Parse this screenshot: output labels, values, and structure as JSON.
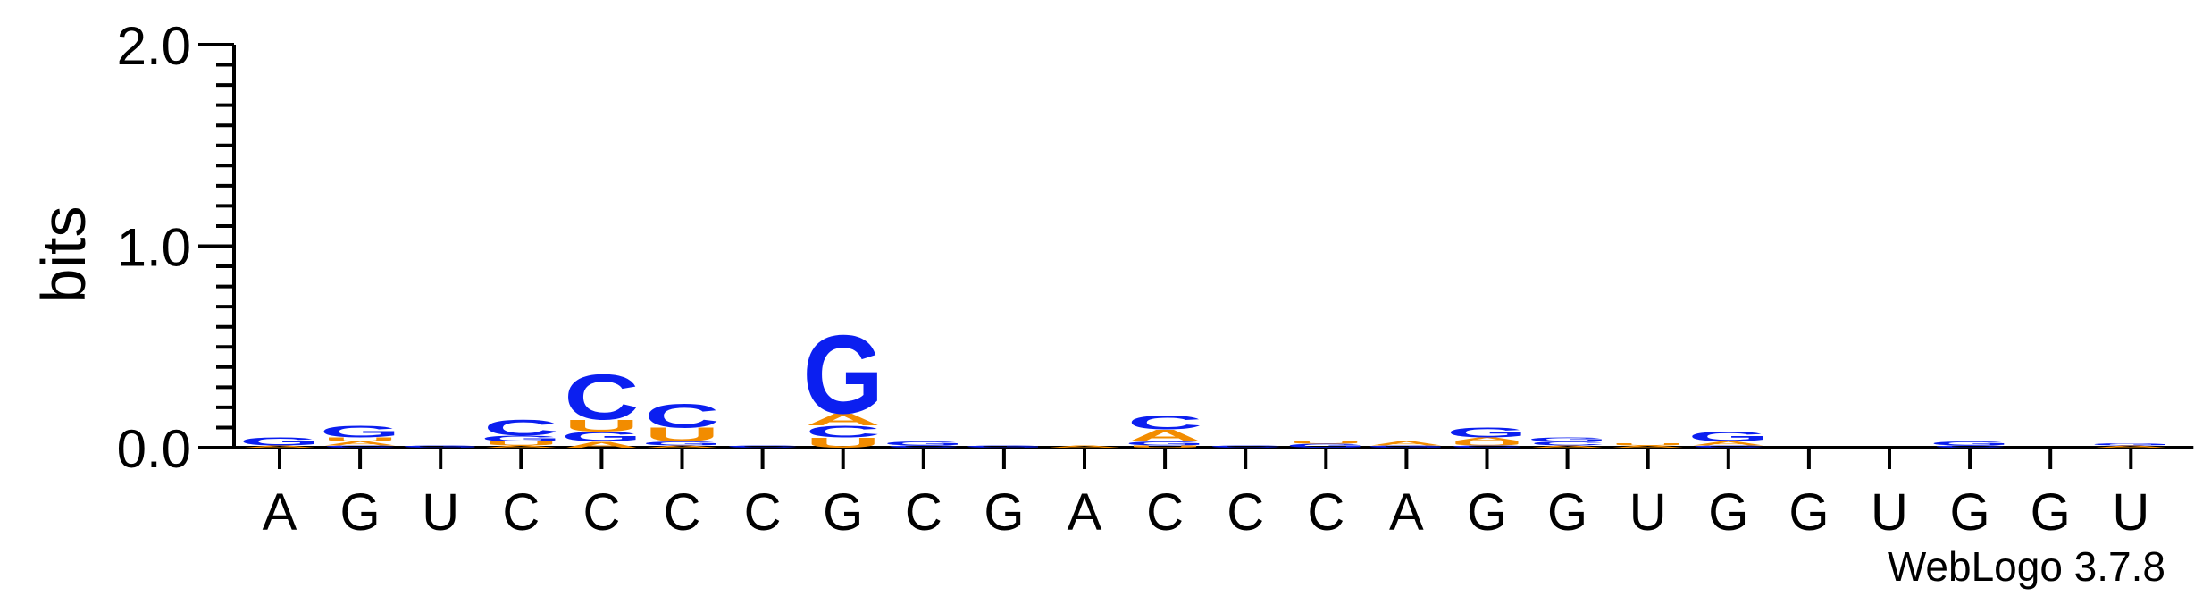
{
  "chart_data": {
    "type": "sequence-logo",
    "ylabel": "bits",
    "ylim": [
      0,
      2.0
    ],
    "yticks": [
      {
        "value": 0.0,
        "label": "0.0"
      },
      {
        "value": 1.0,
        "label": "1.0"
      },
      {
        "value": 2.0,
        "label": "2.0"
      }
    ],
    "colors": {
      "A": "#f28c00",
      "U": "#f28c00",
      "G": "#0b1ff0",
      "C": "#0b1ff0"
    },
    "positions": [
      {
        "label": "A",
        "stack": [
          [
            "A",
            0.01
          ],
          [
            "G",
            0.04
          ]
        ]
      },
      {
        "label": "G",
        "stack": [
          [
            "C",
            0.01
          ],
          [
            "A",
            0.02
          ],
          [
            "U",
            0.02
          ],
          [
            "G",
            0.06
          ]
        ]
      },
      {
        "label": "U",
        "stack": [
          [
            "G",
            0.01
          ]
        ]
      },
      {
        "label": "C",
        "stack": [
          [
            "A",
            0.01
          ],
          [
            "U",
            0.02
          ],
          [
            "G",
            0.03
          ],
          [
            "C",
            0.08
          ]
        ]
      },
      {
        "label": "C",
        "stack": [
          [
            "A",
            0.03
          ],
          [
            "G",
            0.05
          ],
          [
            "U",
            0.06
          ],
          [
            "C",
            0.23
          ]
        ]
      },
      {
        "label": "C",
        "stack": [
          [
            "A",
            0.01
          ],
          [
            "G",
            0.02
          ],
          [
            "U",
            0.07
          ],
          [
            "C",
            0.12
          ]
        ]
      },
      {
        "label": "C",
        "stack": [
          [
            "C",
            0.01
          ]
        ]
      },
      {
        "label": "G",
        "stack": [
          [
            "U",
            0.05
          ],
          [
            "C",
            0.06
          ],
          [
            "A",
            0.06
          ],
          [
            "G",
            0.4
          ]
        ]
      },
      {
        "label": "C",
        "stack": [
          [
            "C",
            0.01
          ],
          [
            "G",
            0.02
          ]
        ]
      },
      {
        "label": "G",
        "stack": [
          [
            "G",
            0.01
          ]
        ]
      },
      {
        "label": "A",
        "stack": [
          [
            "A",
            0.01
          ]
        ]
      },
      {
        "label": "C",
        "stack": [
          [
            "U",
            0.01
          ],
          [
            "G",
            0.02
          ],
          [
            "A",
            0.06
          ],
          [
            "C",
            0.07
          ]
        ]
      },
      {
        "label": "C",
        "stack": [
          [
            "C",
            0.01
          ]
        ]
      },
      {
        "label": "C",
        "stack": [
          [
            "G",
            0.02
          ],
          [
            "U",
            0.01
          ]
        ]
      },
      {
        "label": "A",
        "stack": [
          [
            "G",
            0.01
          ],
          [
            "A",
            0.02
          ]
        ]
      },
      {
        "label": "G",
        "stack": [
          [
            "C",
            0.01
          ],
          [
            "U",
            0.02
          ],
          [
            "A",
            0.02
          ],
          [
            "G",
            0.05
          ]
        ]
      },
      {
        "label": "G",
        "stack": [
          [
            "A",
            0.01
          ],
          [
            "C",
            0.02
          ],
          [
            "G",
            0.02
          ]
        ]
      },
      {
        "label": "U",
        "stack": [
          [
            "A",
            0.01
          ],
          [
            "U",
            0.01
          ]
        ]
      },
      {
        "label": "G",
        "stack": [
          [
            "C",
            0.01
          ],
          [
            "A",
            0.02
          ],
          [
            "G",
            0.05
          ]
        ]
      },
      {
        "label": "G",
        "stack": []
      },
      {
        "label": "U",
        "stack": []
      },
      {
        "label": "G",
        "stack": [
          [
            "C",
            0.01
          ],
          [
            "G",
            0.02
          ]
        ]
      },
      {
        "label": "G",
        "stack": []
      },
      {
        "label": "U",
        "stack": [
          [
            "A",
            0.01
          ],
          [
            "G",
            0.01
          ]
        ]
      }
    ],
    "footer": "WebLogo 3.7.8"
  }
}
